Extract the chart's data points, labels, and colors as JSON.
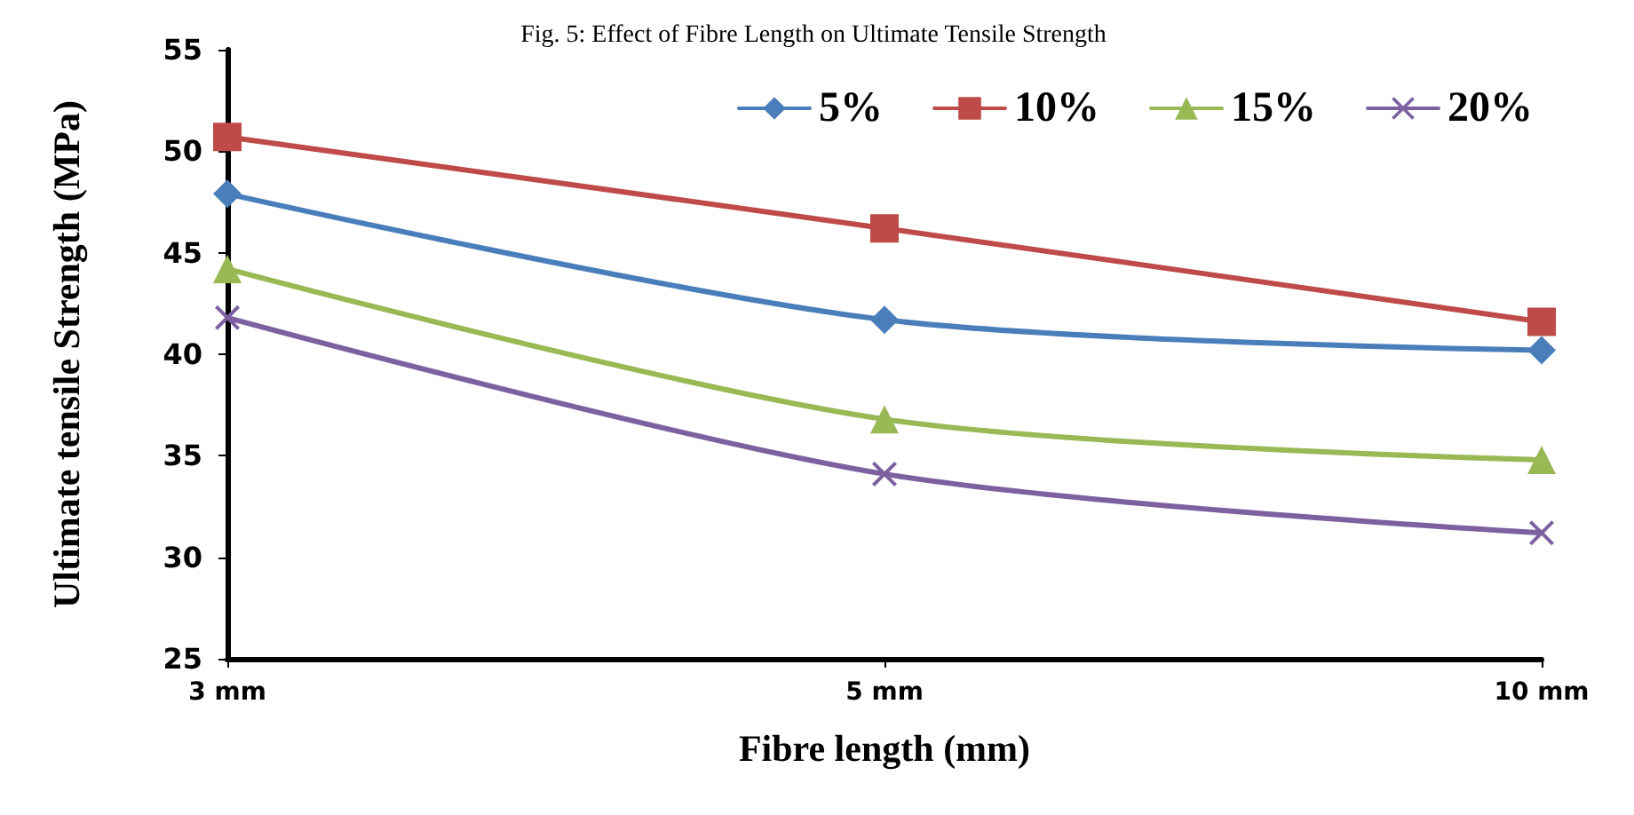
{
  "chart_data": {
    "type": "line",
    "title": "Fig. 5: Effect of Fibre Length on Ultimate Tensile Strength",
    "xlabel": "Fibre length (mm)",
    "ylabel": "Ultimate tensile Strength (MPa)",
    "categories": [
      "3 mm",
      "5 mm",
      "10 mm"
    ],
    "series": [
      {
        "name": "5%",
        "color": "#4a7ebb",
        "marker": "diamond",
        "values": [
          47.9,
          41.7,
          40.2
        ]
      },
      {
        "name": "10%",
        "color": "#be4b48",
        "marker": "square",
        "values": [
          50.7,
          46.2,
          41.6
        ]
      },
      {
        "name": "15%",
        "color": "#98b954",
        "marker": "triangle",
        "values": [
          44.2,
          36.8,
          34.8
        ]
      },
      {
        "name": "20%",
        "color": "#7d60a0",
        "marker": "cross",
        "values": [
          41.8,
          34.1,
          31.2
        ]
      }
    ],
    "ylim": [
      25,
      55
    ],
    "yticks": [
      25,
      30,
      35,
      40,
      45,
      50,
      55
    ],
    "grid": false,
    "legend": "top right"
  }
}
